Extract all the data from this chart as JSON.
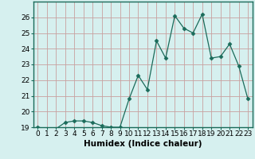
{
  "x": [
    0,
    1,
    2,
    3,
    4,
    5,
    6,
    7,
    8,
    9,
    10,
    11,
    12,
    13,
    14,
    15,
    16,
    17,
    18,
    19,
    20,
    21,
    22,
    23
  ],
  "y": [
    19.0,
    18.9,
    18.9,
    19.3,
    19.4,
    19.4,
    19.3,
    19.1,
    19.0,
    19.0,
    20.8,
    22.3,
    21.4,
    24.5,
    23.4,
    26.1,
    25.3,
    25.0,
    26.2,
    23.4,
    23.5,
    24.3,
    22.9,
    20.8
  ],
  "line_color": "#1a6b5a",
  "marker": "D",
  "marker_size": 2.5,
  "bg_color": "#d6f0ef",
  "grid_color": "#c8a0a0",
  "spine_color": "#1a6b5a",
  "xlabel": "Humidex (Indice chaleur)",
  "ylim": [
    19,
    27
  ],
  "xlim": [
    -0.5,
    23.5
  ],
  "yticks": [
    19,
    20,
    21,
    22,
    23,
    24,
    25,
    26
  ],
  "xticks": [
    0,
    1,
    2,
    3,
    4,
    5,
    6,
    7,
    8,
    9,
    10,
    11,
    12,
    13,
    14,
    15,
    16,
    17,
    18,
    19,
    20,
    21,
    22,
    23
  ],
  "tick_font_size": 6.5,
  "label_font_size": 7.5
}
